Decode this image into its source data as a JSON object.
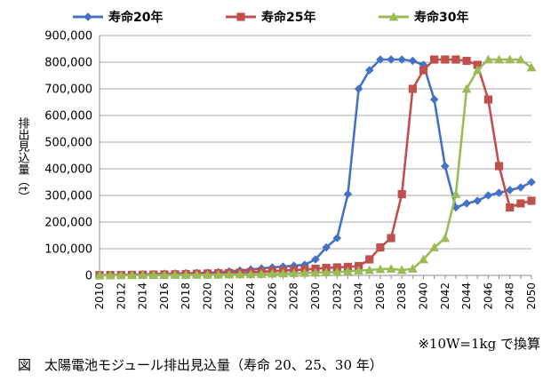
{
  "chart_data": {
    "type": "line",
    "ylabel": "排出見込量（t）",
    "ylim": [
      0,
      900000
    ],
    "yticks": [
      "0",
      "100,000",
      "200,000",
      "300,000",
      "400,000",
      "500,000",
      "600,000",
      "700,000",
      "800,000",
      "900,000"
    ],
    "ytick_values": [
      0,
      100000,
      200000,
      300000,
      400000,
      500000,
      600000,
      700000,
      800000,
      900000
    ],
    "xlim": [
      2010,
      2050
    ],
    "xticks": [
      "2010",
      "2012",
      "2014",
      "2016",
      "2018",
      "2020",
      "2022",
      "2024",
      "2026",
      "2028",
      "2030",
      "2032",
      "2034",
      "2036",
      "2038",
      "2040",
      "2042",
      "2044",
      "2046",
      "2048",
      "2050"
    ],
    "xtick_values": [
      2010,
      2012,
      2014,
      2016,
      2018,
      2020,
      2022,
      2024,
      2026,
      2028,
      2030,
      2032,
      2034,
      2036,
      2038,
      2040,
      2042,
      2044,
      2046,
      2048,
      2050
    ],
    "grid": "horizontal",
    "legend_position": "top",
    "x": [
      2010,
      2011,
      2012,
      2013,
      2014,
      2015,
      2016,
      2017,
      2018,
      2019,
      2020,
      2021,
      2022,
      2023,
      2024,
      2025,
      2026,
      2027,
      2028,
      2029,
      2030,
      2031,
      2032,
      2033,
      2034,
      2035,
      2036,
      2037,
      2038,
      2039,
      2040,
      2041,
      2042,
      2043,
      2044,
      2045,
      2046,
      2047,
      2048,
      2049,
      2050
    ],
    "series": [
      {
        "name": "寿命20年",
        "color": "#4472C4",
        "marker": "diamond",
        "values": [
          1000,
          1500,
          2000,
          3000,
          4000,
          5000,
          6000,
          7000,
          8000,
          9000,
          10000,
          12000,
          15000,
          18000,
          22000,
          26000,
          30000,
          33000,
          36000,
          40000,
          60000,
          105000,
          140000,
          305000,
          700000,
          770000,
          810000,
          810000,
          810000,
          805000,
          790000,
          660000,
          410000,
          255000,
          270000,
          280000,
          300000,
          310000,
          320000,
          330000,
          350000
        ]
      },
      {
        "name": "寿命25年",
        "color": "#C0504D",
        "marker": "square",
        "values": [
          1000,
          1200,
          1500,
          2000,
          2500,
          3000,
          3500,
          4000,
          5000,
          6000,
          7000,
          8000,
          9000,
          10000,
          12000,
          14000,
          16000,
          18000,
          20000,
          22000,
          25000,
          28000,
          30000,
          32000,
          35000,
          60000,
          105000,
          140000,
          305000,
          700000,
          770000,
          810000,
          810000,
          810000,
          805000,
          790000,
          660000,
          410000,
          255000,
          270000,
          280000
        ]
      },
      {
        "name": "寿命30年",
        "color": "#9BBB59",
        "marker": "triangle",
        "values": [
          500,
          600,
          700,
          800,
          900,
          1000,
          1200,
          1400,
          1600,
          1800,
          2000,
          2500,
          3000,
          3500,
          4000,
          5000,
          6000,
          7000,
          8000,
          9000,
          10000,
          11000,
          12000,
          15000,
          18000,
          20000,
          23000,
          25000,
          20000,
          25000,
          60000,
          105000,
          140000,
          305000,
          700000,
          770000,
          810000,
          810000,
          810000,
          810000,
          780000
        ]
      }
    ]
  },
  "note": "※10W=1kg で換算",
  "caption": "図　太陽電池モジュール排出見込量（寿命 20、25、30 年）"
}
